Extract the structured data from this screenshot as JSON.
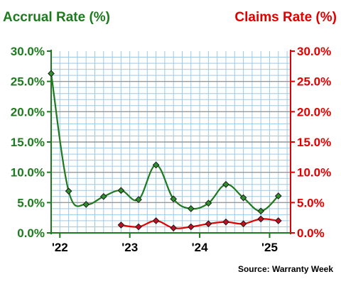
{
  "chart_data": {
    "type": "line",
    "left_axis_label": "Accrual Rate (%)",
    "right_axis_label": "Claims Rate (%)",
    "source": "Source: Warranty Week",
    "y_ticks": [
      "0.0%",
      "5.0%",
      "10.0%",
      "15.0%",
      "20.0%",
      "25.0%",
      "30.0%"
    ],
    "ylim": [
      0,
      30
    ],
    "xlim": [
      2021.875,
      2025.3
    ],
    "x_ticks": [
      {
        "label": "'22",
        "x": 2022.0
      },
      {
        "label": "'23",
        "x": 2023.0
      },
      {
        "label": "'24",
        "x": 2024.0
      },
      {
        "label": "'25",
        "x": 2025.0
      }
    ],
    "grid": true,
    "colors": {
      "accrual": "#1e7a1e",
      "accrual_marker": "#2f8f2f",
      "claims": "#e00000",
      "claims_marker": "#c01020",
      "grid_horizontal_major": "#999999",
      "grid_horizontal_minor": "#9ec9e6",
      "grid_vertical": "#9ec9e6"
    },
    "series": [
      {
        "name": "Accrual Rate (%)",
        "axis": "left",
        "x": [
          2021.875,
          2022.125,
          2022.375,
          2022.625,
          2022.875,
          2023.125,
          2023.375,
          2023.625,
          2023.875,
          2024.125,
          2024.375,
          2024.625,
          2024.875,
          2025.125
        ],
        "values": [
          26.3,
          6.9,
          4.7,
          6.0,
          7.0,
          5.5,
          11.2,
          5.6,
          4.0,
          4.9,
          8.0,
          5.8,
          3.6,
          6.1
        ]
      },
      {
        "name": "Claims Rate (%)",
        "axis": "right",
        "x": [
          2022.875,
          2023.125,
          2023.375,
          2023.625,
          2023.875,
          2024.125,
          2024.375,
          2024.625,
          2024.875,
          2025.125
        ],
        "values": [
          1.3,
          1.0,
          2.0,
          0.8,
          1.0,
          1.5,
          1.8,
          1.5,
          2.3,
          2.0
        ]
      }
    ]
  }
}
